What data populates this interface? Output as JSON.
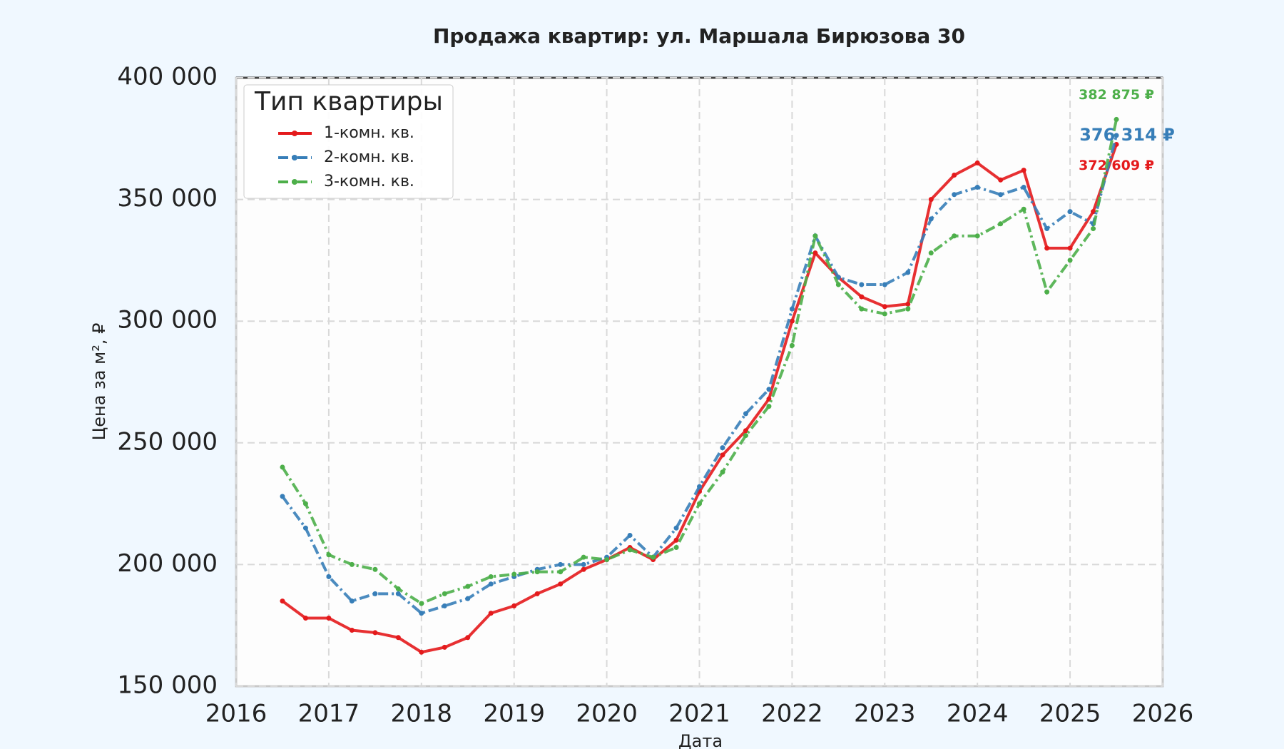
{
  "chart_data": {
    "type": "line",
    "title": "Продажа квартир: ул. Маршала Бирюзова 30",
    "x_label": "Дата",
    "y_label": "Цена за м², ₽",
    "legend_title": "Тип квартиры",
    "legend_position": "upper-left",
    "grid": true,
    "x": [
      2016.5,
      2016.75,
      2017.0,
      2017.25,
      2017.5,
      2017.75,
      2018.0,
      2018.25,
      2018.5,
      2018.75,
      2019.0,
      2019.25,
      2019.5,
      2019.75,
      2020.0,
      2020.25,
      2020.5,
      2020.75,
      2021.0,
      2021.25,
      2021.5,
      2021.75,
      2022.0,
      2022.25,
      2022.5,
      2022.75,
      2023.0,
      2023.25,
      2023.5,
      2023.75,
      2024.0,
      2024.25,
      2024.5,
      2024.75,
      2025.0,
      2025.25,
      2025.5
    ],
    "xlim": [
      2016,
      2026
    ],
    "xticks": [
      2016,
      2017,
      2018,
      2019,
      2020,
      2021,
      2022,
      2023,
      2024,
      2025,
      2026
    ],
    "ylim": [
      150000,
      400000
    ],
    "yticks": [
      {
        "value": 150000,
        "label": "150 000"
      },
      {
        "value": 200000,
        "label": "200 000"
      },
      {
        "value": 250000,
        "label": "250 000"
      },
      {
        "value": 300000,
        "label": "300 000"
      },
      {
        "value": 350000,
        "label": "350 000"
      },
      {
        "value": 400000,
        "label": "400 000"
      }
    ],
    "series": [
      {
        "name": "1-комн. кв.",
        "color": "#e41a1c",
        "linestyle": "solid",
        "values": [
          185000,
          178000,
          178000,
          173000,
          172000,
          170000,
          164000,
          166000,
          170000,
          180000,
          183000,
          188000,
          192000,
          198000,
          202000,
          207000,
          202000,
          210000,
          230000,
          245000,
          255000,
          268000,
          300000,
          328000,
          318000,
          310000,
          306000,
          307000,
          350000,
          360000,
          365000,
          358000,
          362000,
          330000,
          330000,
          345000,
          372609
        ]
      },
      {
        "name": "2-комн. кв.",
        "color": "#377eb8",
        "linestyle": "dashdot",
        "values": [
          228000,
          215000,
          195000,
          185000,
          188000,
          188000,
          180000,
          183000,
          186000,
          192000,
          195000,
          198000,
          200000,
          200000,
          203000,
          212000,
          203000,
          215000,
          232000,
          248000,
          262000,
          272000,
          305000,
          335000,
          318000,
          315000,
          315000,
          320000,
          342000,
          352000,
          355000,
          352000,
          355000,
          338000,
          345000,
          340000,
          376314
        ]
      },
      {
        "name": "3-комн. кв.",
        "color": "#4daf4a",
        "linestyle": "dashdot",
        "values": [
          240000,
          225000,
          204000,
          200000,
          198000,
          190000,
          184000,
          188000,
          191000,
          195000,
          196000,
          197000,
          197000,
          203000,
          202000,
          206000,
          203000,
          207000,
          225000,
          238000,
          253000,
          265000,
          290000,
          335000,
          315000,
          305000,
          303000,
          305000,
          328000,
          335000,
          335000,
          340000,
          346000,
          312000,
          325000,
          338000,
          382875
        ]
      }
    ],
    "annotations": [
      {
        "text": "382 875 ₽",
        "x": 2025.5,
        "y": 382875,
        "color": "#4daf4a"
      },
      {
        "text": "376 314 ₽",
        "x": 2025.5,
        "y": 376314,
        "color": "#377eb8"
      },
      {
        "text": "372 609 ₽",
        "x": 2025.5,
        "y": 372609,
        "color": "#e41a1c"
      }
    ]
  }
}
